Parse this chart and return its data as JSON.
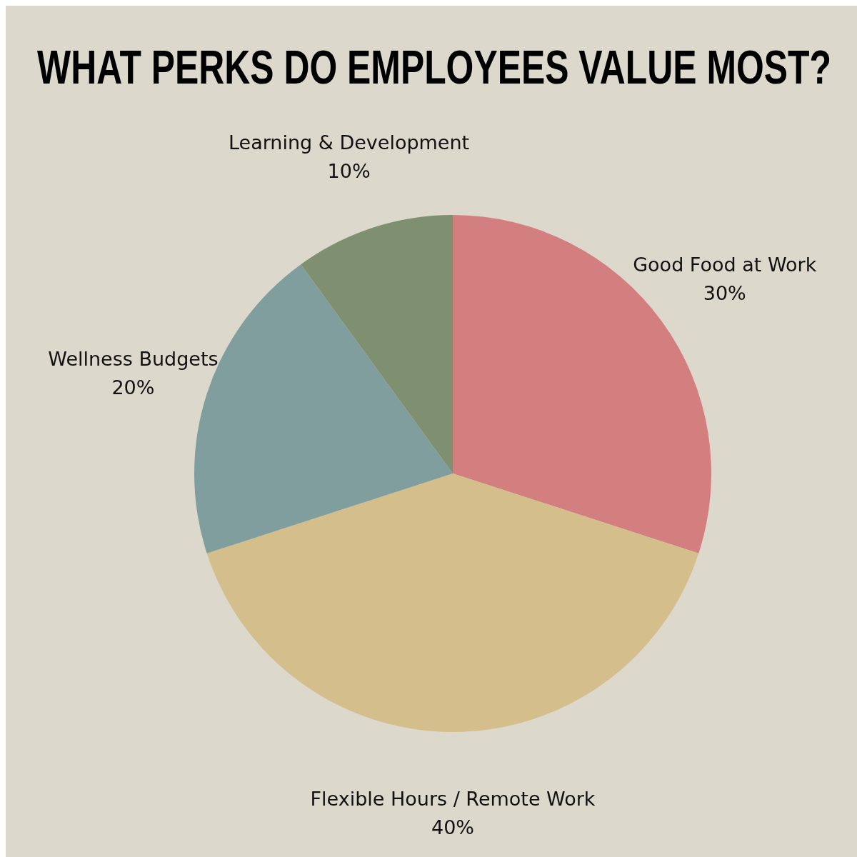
{
  "chart_data": {
    "type": "pie",
    "title": "WHAT PERKS DO EMPLOYEES VALUE MOST?",
    "categories": [
      "Good Food at Work",
      "Flexible Hours / Remote Work",
      "Wellness Budgets",
      "Learning & Development"
    ],
    "values": [
      30,
      40,
      20,
      10
    ],
    "colors": [
      "#d47f7f",
      "#d4be8c",
      "#809e9e",
      "#7f9070"
    ],
    "value_labels": [
      "30%",
      "40%",
      "20%",
      "10%"
    ]
  }
}
